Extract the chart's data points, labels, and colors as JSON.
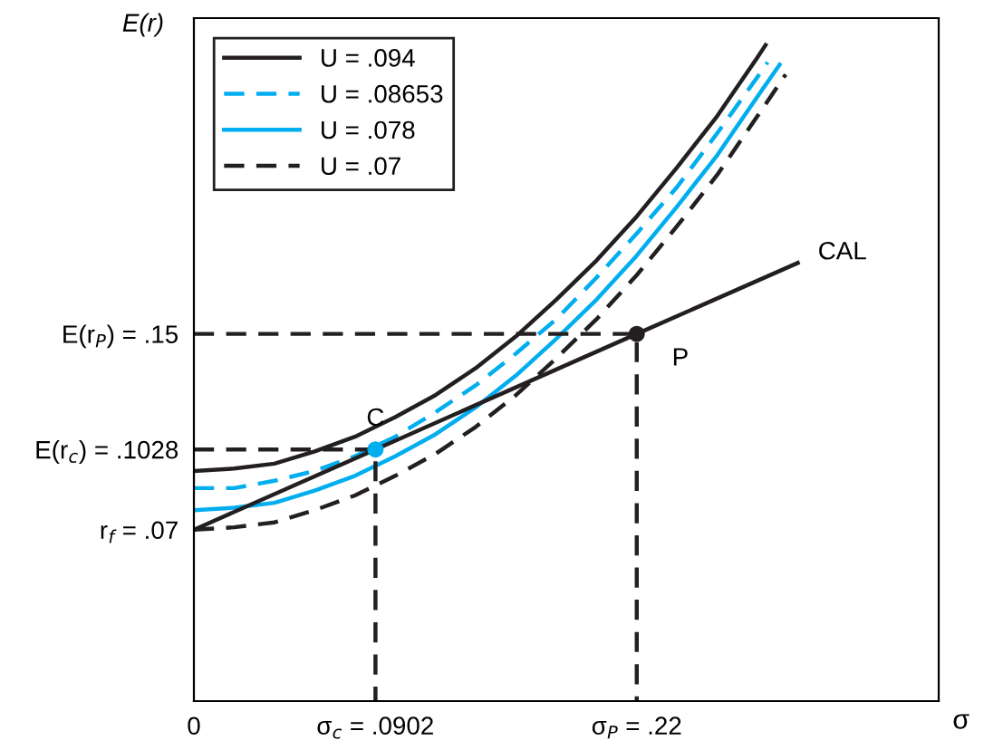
{
  "chart_data": {
    "type": "line",
    "xlabel": "σ",
    "ylabel": "E(r)",
    "xlim": [
      0,
      0.37
    ],
    "ylim": [
      0,
      0.279
    ],
    "xticks": [
      0,
      {
        "value": 0.0902,
        "label": "σ$_{c}$ = .0902"
      },
      {
        "value": 0.22,
        "label": "σ$_{P}$ = .22"
      }
    ],
    "yticks": [
      {
        "value": 0.07,
        "label": "r$_{f}$ = .07"
      },
      {
        "value": 0.1028,
        "label": "E(r$_{c}$) = .1028"
      },
      {
        "value": 0.15,
        "label": "E(r$_{P}$) = .15"
      }
    ],
    "grid": false,
    "legend": "top left",
    "series": [
      {
        "name": "U = .094",
        "color": "#231f20",
        "line_style": "solid",
        "x": [
          0,
          0.02,
          0.04,
          0.06,
          0.08,
          0.1,
          0.12,
          0.14,
          0.16,
          0.18,
          0.2,
          0.22,
          0.24,
          0.26,
          0.28,
          0.284
        ],
        "values": [
          0.094,
          0.095,
          0.097,
          0.102,
          0.108,
          0.116,
          0.125,
          0.136,
          0.149,
          0.164,
          0.18,
          0.198,
          0.218,
          0.239,
          0.263,
          0.268
        ]
      },
      {
        "name": "U = .08653",
        "color": "#00aeef",
        "line_style": "dashed",
        "x": [
          0,
          0.02,
          0.04,
          0.06,
          0.08,
          0.1,
          0.12,
          0.14,
          0.16,
          0.18,
          0.2,
          0.22,
          0.24,
          0.26,
          0.28,
          0.285
        ],
        "values": [
          0.087,
          0.087,
          0.09,
          0.094,
          0.1,
          0.108,
          0.118,
          0.129,
          0.142,
          0.156,
          0.173,
          0.191,
          0.21,
          0.232,
          0.255,
          0.261
        ]
      },
      {
        "name": "U = .078",
        "color": "#00aeef",
        "line_style": "solid",
        "x": [
          0,
          0.02,
          0.04,
          0.06,
          0.08,
          0.1,
          0.12,
          0.14,
          0.16,
          0.18,
          0.2,
          0.22,
          0.24,
          0.26,
          0.28,
          0.291
        ],
        "values": [
          0.078,
          0.079,
          0.081,
          0.086,
          0.092,
          0.1,
          0.109,
          0.12,
          0.133,
          0.148,
          0.164,
          0.182,
          0.202,
          0.223,
          0.247,
          0.26
        ]
      },
      {
        "name": "U = .07",
        "color": "#231f20",
        "line_style": "dashed",
        "x": [
          0,
          0.02,
          0.04,
          0.06,
          0.08,
          0.1,
          0.12,
          0.14,
          0.16,
          0.18,
          0.2,
          0.22,
          0.24,
          0.26,
          0.28,
          0.294
        ],
        "values": [
          0.07,
          0.071,
          0.073,
          0.078,
          0.084,
          0.092,
          0.101,
          0.112,
          0.125,
          0.14,
          0.156,
          0.174,
          0.194,
          0.215,
          0.239,
          0.256
        ]
      },
      {
        "color": "#231f20",
        "line_style": "solid",
        "x": [
          0,
          0.0902,
          0.22,
          0.3
        ],
        "values": [
          0.07,
          0.1028,
          0.15,
          0.179
        ]
      },
      {
        "color": "#231f20",
        "line_style": "dashed",
        "x": [
          0,
          0.0902,
          0.0902
        ],
        "values": [
          0.1028,
          0.1028,
          0
        ]
      },
      {
        "color": "#231f20",
        "line_style": "dashed",
        "x": [
          0,
          0.22,
          0.22
        ],
        "values": [
          0.15,
          0.15,
          0
        ]
      },
      {
        "type": "scatter",
        "marker": "circle",
        "color": "#00aeef",
        "x": [
          0.0902
        ],
        "values": [
          0.1028
        ]
      },
      {
        "type": "scatter",
        "marker": "circle",
        "color": "#231f20",
        "x": [
          0.22
        ],
        "values": [
          0.15
        ]
      }
    ],
    "annotations": [
      {
        "text": "C",
        "x": 0.0902,
        "y": 0.1028
      },
      {
        "text": "P",
        "x": 0.22,
        "y": 0.15
      },
      {
        "text": "CAL",
        "x": 0.3,
        "y": 0.179
      }
    ]
  }
}
